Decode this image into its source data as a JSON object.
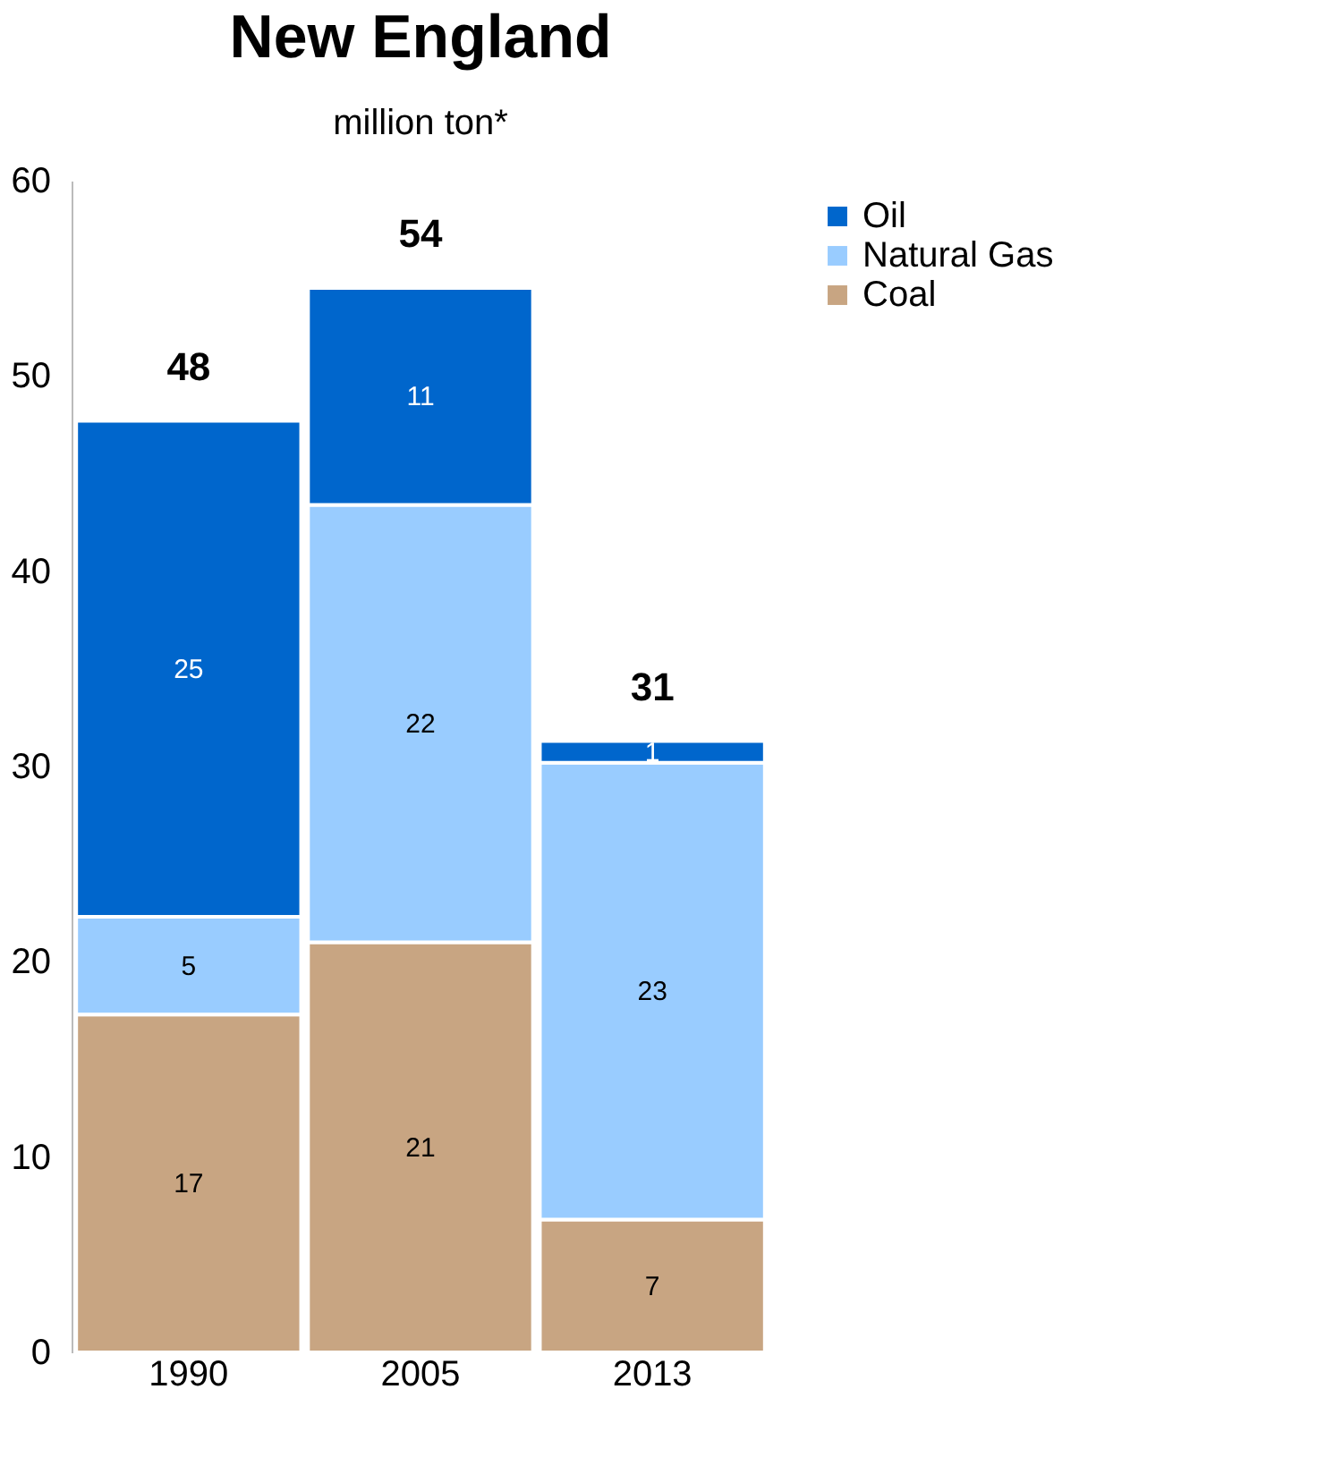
{
  "chart_data": {
    "type": "bar",
    "title": "New England",
    "subtitle": "million ton*",
    "categories": [
      "1990",
      "2005",
      "2013"
    ],
    "stacked": true,
    "series": [
      {
        "name": "Coal",
        "color": "#c8a582",
        "values": [
          17.3,
          21.0,
          6.8
        ],
        "value_labels": [
          "17",
          "21",
          "7"
        ]
      },
      {
        "name": "Natural Gas",
        "color": "#99ccff",
        "values": [
          5.0,
          22.4,
          23.4
        ],
        "value_labels": [
          "5",
          "22",
          "23"
        ]
      },
      {
        "name": "Oil",
        "color": "#0066cc",
        "values": [
          25.4,
          11.1,
          1.1
        ],
        "value_labels": [
          "25",
          "11",
          "1"
        ]
      }
    ],
    "totals": [
      "48",
      "54",
      "31"
    ],
    "ylim": [
      0,
      60
    ],
    "yticks": [
      0,
      10,
      20,
      30,
      40,
      50,
      60
    ],
    "grid": false,
    "legend": "right"
  }
}
